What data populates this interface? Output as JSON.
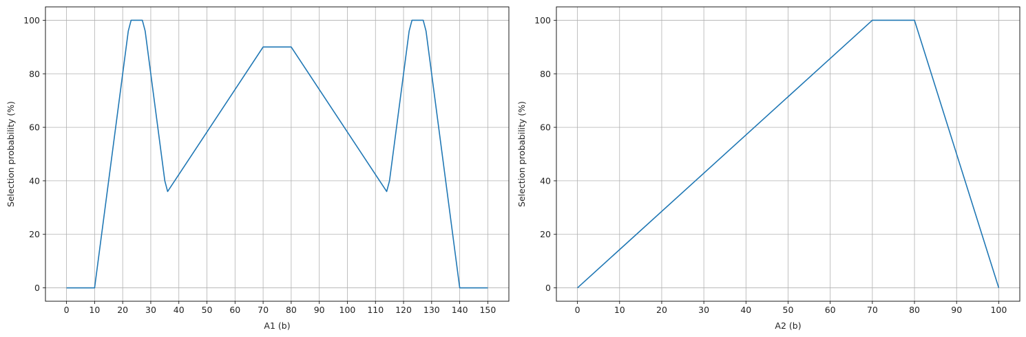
{
  "chart_data": [
    {
      "type": "line",
      "xlabel": "A1 (b)",
      "ylabel": "Selection probability (%)",
      "xlim": [
        -7.5,
        157.5
      ],
      "ylim": [
        -5,
        105
      ],
      "xticks": [
        0,
        10,
        20,
        30,
        40,
        50,
        60,
        70,
        80,
        90,
        100,
        110,
        120,
        130,
        140,
        150
      ],
      "yticks": [
        0,
        20,
        40,
        60,
        80,
        100
      ],
      "grid": true,
      "color": "#1f77b4",
      "series": [
        {
          "x": [
            0,
            10,
            22,
            23,
            26,
            27,
            28,
            35,
            36,
            70,
            80,
            114,
            115,
            122,
            123,
            127,
            128,
            140,
            150
          ],
          "y": [
            0,
            0,
            96,
            100,
            100,
            100,
            96,
            40,
            36,
            90,
            90,
            36,
            40,
            96,
            100,
            100,
            96,
            0,
            0
          ]
        }
      ]
    },
    {
      "type": "line",
      "xlabel": "A2 (b)",
      "ylabel": "Selection probability (%)",
      "xlim": [
        -5,
        105
      ],
      "ylim": [
        -5,
        105
      ],
      "xticks": [
        0,
        10,
        20,
        30,
        40,
        50,
        60,
        70,
        80,
        90,
        100
      ],
      "yticks": [
        0,
        20,
        40,
        60,
        80,
        100
      ],
      "grid": true,
      "color": "#1f77b4",
      "series": [
        {
          "x": [
            0,
            70,
            80,
            100
          ],
          "y": [
            0,
            100,
            100,
            0
          ]
        }
      ]
    }
  ]
}
